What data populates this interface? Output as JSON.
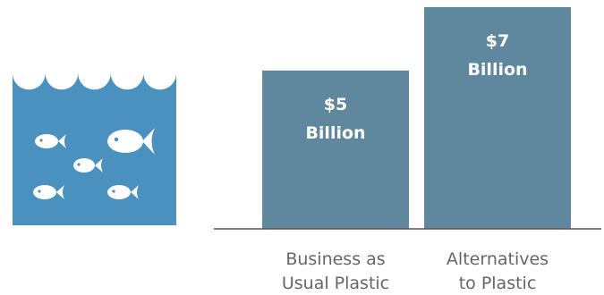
{
  "colors": {
    "bar": "#5f889f",
    "ocean": "#4a91bf",
    "wave": "#ffffff",
    "fish": "#ffffff",
    "baseline": "#555555",
    "label": "#666666"
  },
  "icon": {
    "name": "ocean-fish-icon"
  },
  "chart_data": {
    "type": "bar",
    "categories": [
      "Business as Usual Plastic",
      "Alternatives to Plastic"
    ],
    "category_label_lines": [
      [
        "Business as",
        "Usual Plastic"
      ],
      [
        "Alternatives",
        "to Plastic"
      ]
    ],
    "values": [
      5,
      7
    ],
    "value_label_lines": [
      [
        "$5",
        "Billion"
      ],
      [
        "$7",
        "Billion"
      ]
    ],
    "unit": "Billion USD",
    "title": "",
    "xlabel": "",
    "ylabel": "",
    "ylim": [
      0,
      7
    ],
    "grid": false,
    "legend": "none"
  }
}
